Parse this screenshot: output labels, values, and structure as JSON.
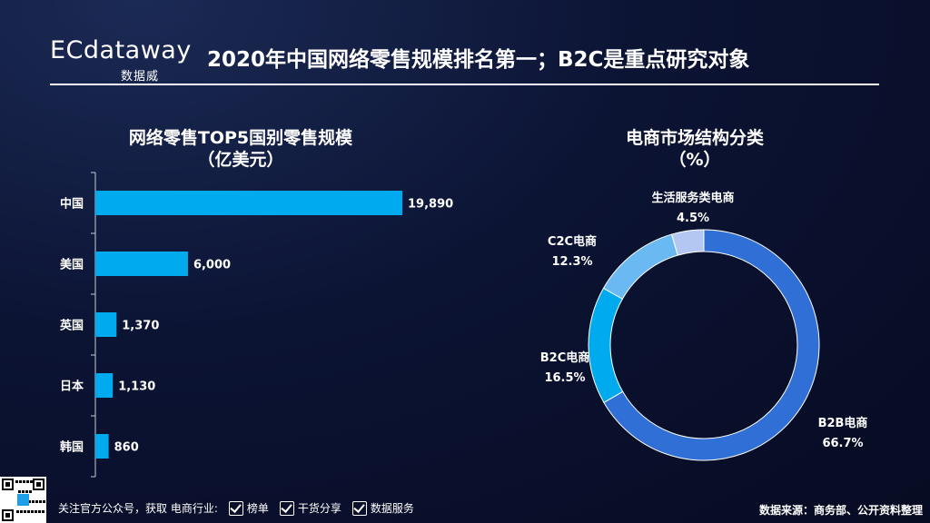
{
  "header": {
    "logo_en": "ECdataway",
    "logo_cn": "数据威",
    "title": "2020年中国网络零售规模排名第一；B2C是重点研究对象"
  },
  "chart_data": [
    {
      "type": "bar",
      "orientation": "horizontal",
      "title": "网络零售TOP5国别零售规模",
      "subtitle": "（亿美元）",
      "categories": [
        "中国",
        "美国",
        "英国",
        "日本",
        "韩国"
      ],
      "values": [
        19890,
        6000,
        1370,
        1130,
        860
      ],
      "value_labels": [
        "19,890",
        "6,000",
        "1,370",
        "1,130",
        "860"
      ],
      "xlim": [
        0,
        19890
      ],
      "grid": false,
      "color": "#00aaee"
    },
    {
      "type": "pie",
      "donut": true,
      "title": "电商市场结构分类",
      "subtitle": "（%）",
      "categories": [
        "B2B电商",
        "B2C电商",
        "C2C电商",
        "生活服务类电商"
      ],
      "values": [
        66.7,
        16.5,
        12.3,
        4.5
      ],
      "value_labels": [
        "66.7%",
        "16.5%",
        "12.3%",
        "4.5%"
      ],
      "colors": [
        "#2f6fd6",
        "#00aaee",
        "#6ab9f2",
        "#b4c6f2"
      ]
    }
  ],
  "footer": {
    "follow_text": "关注官方公众号，获取 电商行业:",
    "checks": [
      "榜单",
      "干货分享",
      "数据服务"
    ],
    "source": "数据来源：商务部、公开资料整理"
  }
}
